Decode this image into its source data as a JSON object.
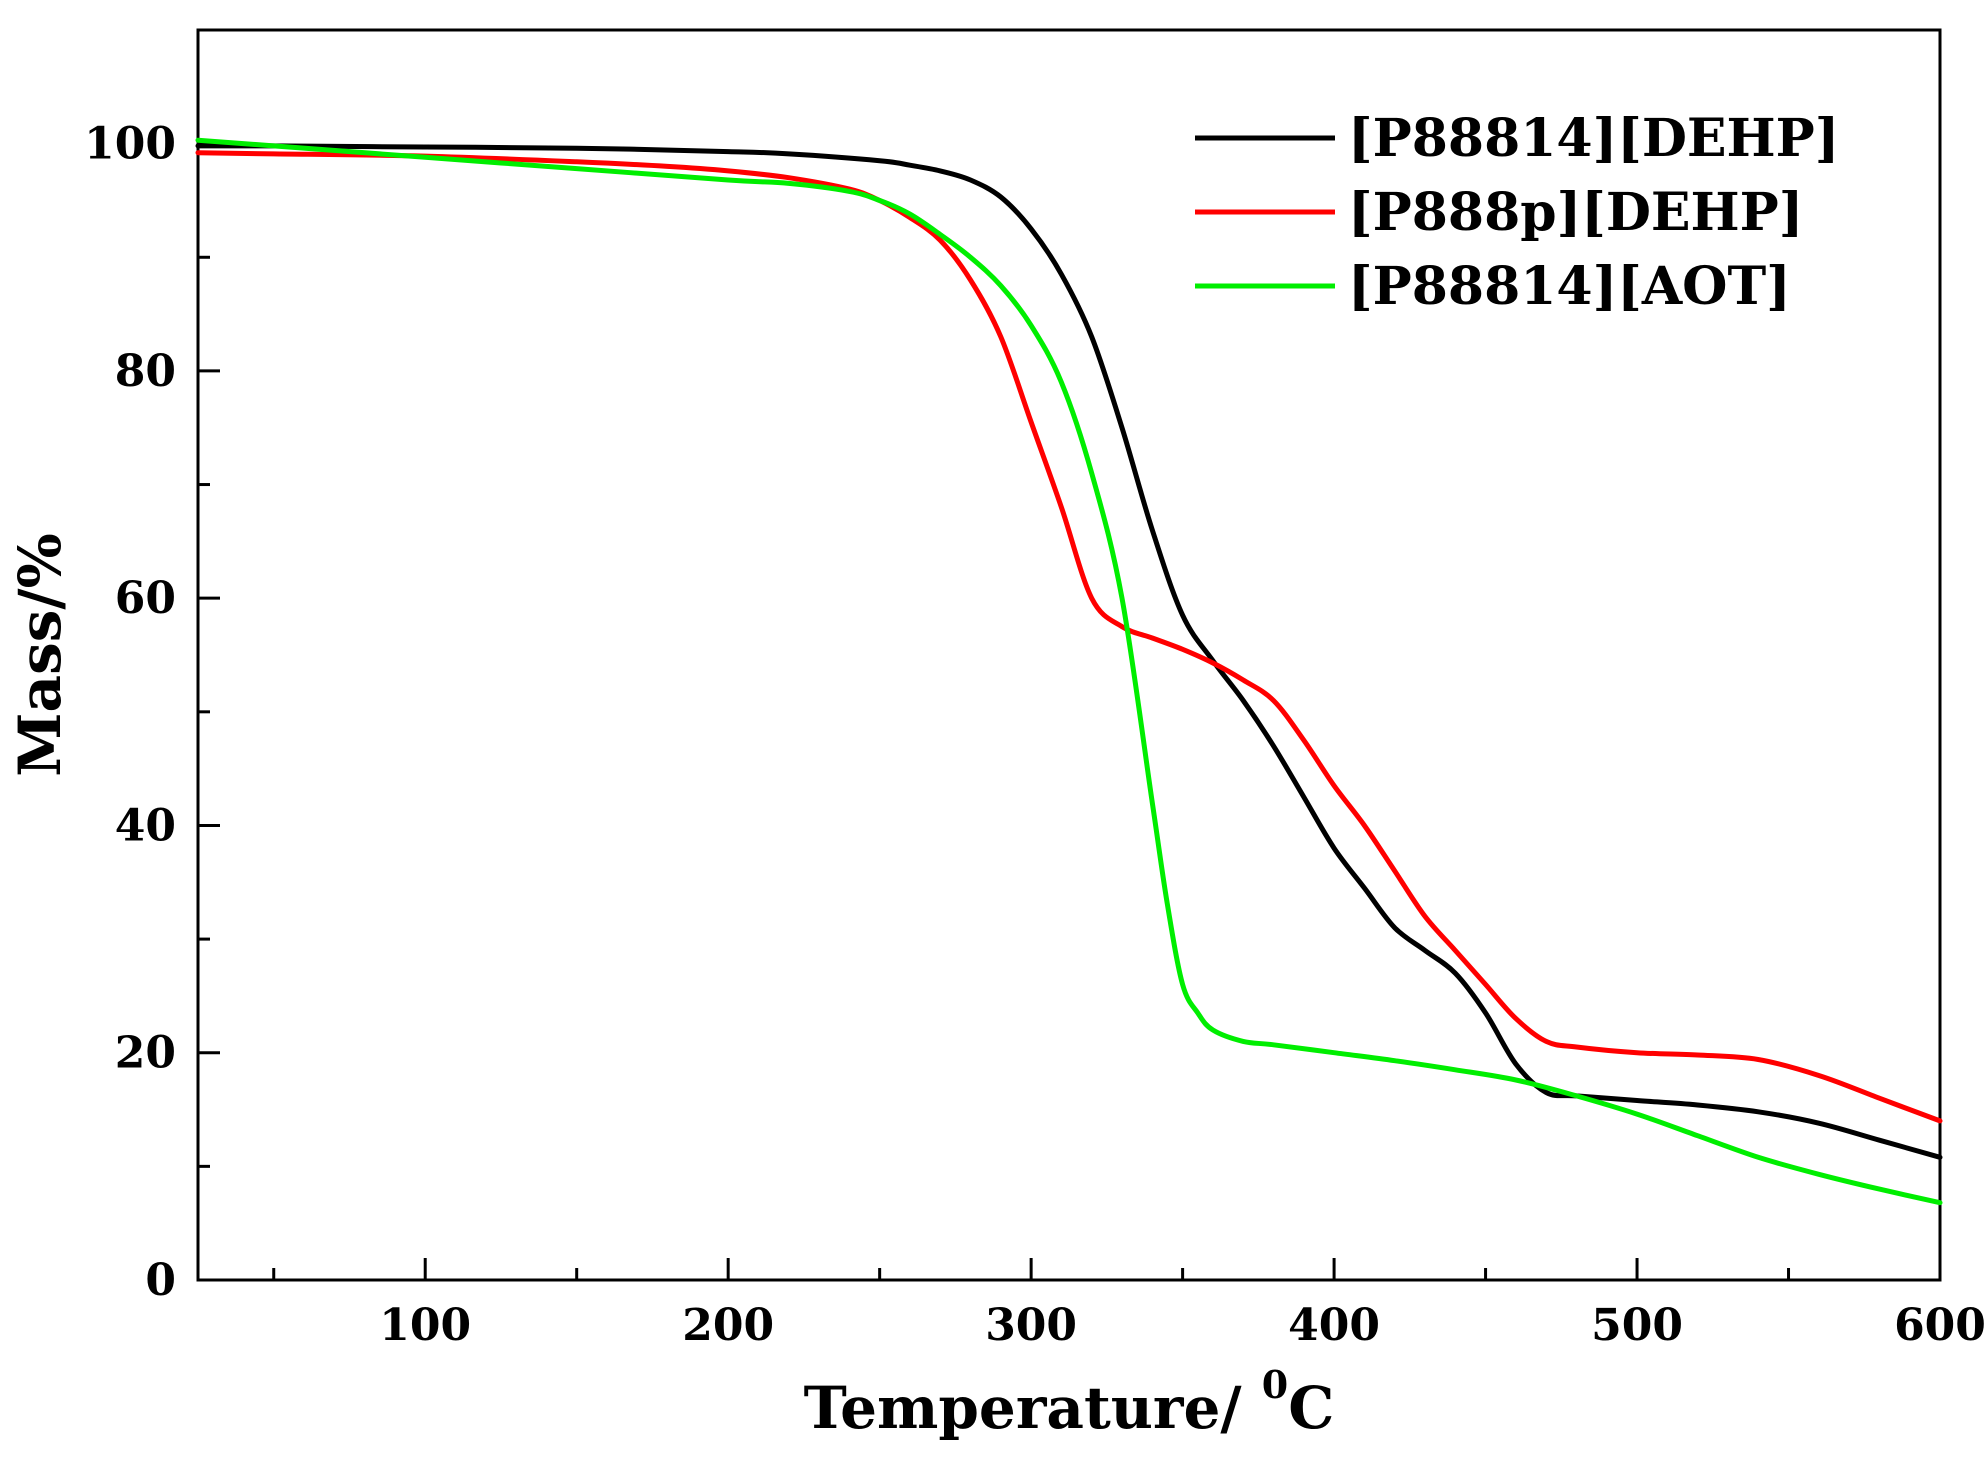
{
  "chart_data": {
    "type": "line",
    "title": "",
    "xlabel": "Temperature/ ",
    "xlabel_superscript": "0",
    "xlabel_unit": "C",
    "ylabel": "Mass/%",
    "xlim": [
      25,
      600
    ],
    "ylim": [
      0,
      110
    ],
    "x_ticks": [
      100,
      200,
      300,
      400,
      500,
      600
    ],
    "x_minor_ticks": [
      50,
      150,
      250,
      350,
      450,
      550
    ],
    "y_ticks": [
      0,
      20,
      40,
      60,
      80,
      100
    ],
    "y_minor_ticks": [
      10,
      30,
      50,
      70,
      90
    ],
    "legend_position": "top-right",
    "series": [
      {
        "name": "[P88814][DEHP]",
        "color": "#000000",
        "points": [
          [
            25,
            99.8
          ],
          [
            50,
            99.8
          ],
          [
            100,
            99.7
          ],
          [
            150,
            99.6
          ],
          [
            200,
            99.3
          ],
          [
            220,
            99.1
          ],
          [
            250,
            98.5
          ],
          [
            260,
            98.1
          ],
          [
            270,
            97.6
          ],
          [
            280,
            96.8
          ],
          [
            290,
            95.3
          ],
          [
            300,
            92.5
          ],
          [
            310,
            88.5
          ],
          [
            320,
            83
          ],
          [
            330,
            75
          ],
          [
            340,
            66
          ],
          [
            350,
            58.5
          ],
          [
            360,
            54.5
          ],
          [
            370,
            51
          ],
          [
            380,
            47
          ],
          [
            390,
            42.5
          ],
          [
            400,
            38
          ],
          [
            410,
            34.5
          ],
          [
            420,
            31
          ],
          [
            430,
            29
          ],
          [
            440,
            27
          ],
          [
            450,
            23.5
          ],
          [
            460,
            19
          ],
          [
            470,
            16.5
          ],
          [
            480,
            16.2
          ],
          [
            500,
            15.8
          ],
          [
            520,
            15.4
          ],
          [
            540,
            14.8
          ],
          [
            560,
            13.8
          ],
          [
            580,
            12.3
          ],
          [
            600,
            10.8
          ]
        ]
      },
      {
        "name": "[P888p][DEHP]",
        "color": "#ff0000",
        "points": [
          [
            25,
            99.2
          ],
          [
            50,
            99.1
          ],
          [
            100,
            98.9
          ],
          [
            150,
            98.4
          ],
          [
            180,
            98
          ],
          [
            200,
            97.6
          ],
          [
            220,
            97
          ],
          [
            240,
            96
          ],
          [
            250,
            95
          ],
          [
            260,
            93.5
          ],
          [
            270,
            91.5
          ],
          [
            280,
            88
          ],
          [
            290,
            83
          ],
          [
            300,
            75.5
          ],
          [
            310,
            68
          ],
          [
            320,
            60
          ],
          [
            330,
            57.5
          ],
          [
            340,
            56.5
          ],
          [
            350,
            55.5
          ],
          [
            360,
            54.3
          ],
          [
            370,
            52.8
          ],
          [
            380,
            51
          ],
          [
            390,
            47.5
          ],
          [
            400,
            43.5
          ],
          [
            410,
            40
          ],
          [
            420,
            36
          ],
          [
            430,
            32
          ],
          [
            440,
            29
          ],
          [
            450,
            26
          ],
          [
            460,
            23
          ],
          [
            470,
            21
          ],
          [
            480,
            20.5
          ],
          [
            500,
            20
          ],
          [
            520,
            19.8
          ],
          [
            540,
            19.4
          ],
          [
            560,
            18
          ],
          [
            580,
            16
          ],
          [
            600,
            14
          ]
        ]
      },
      {
        "name": "[P88814][AOT]",
        "color": "#00ee00",
        "points": [
          [
            25,
            100.3
          ],
          [
            50,
            99.8
          ],
          [
            100,
            98.8
          ],
          [
            150,
            97.8
          ],
          [
            200,
            96.8
          ],
          [
            220,
            96.5
          ],
          [
            240,
            95.8
          ],
          [
            250,
            95
          ],
          [
            260,
            93.8
          ],
          [
            270,
            92
          ],
          [
            280,
            90
          ],
          [
            290,
            87.5
          ],
          [
            300,
            84
          ],
          [
            310,
            79
          ],
          [
            320,
            71
          ],
          [
            330,
            60
          ],
          [
            340,
            42
          ],
          [
            345,
            33
          ],
          [
            350,
            26
          ],
          [
            355,
            23.5
          ],
          [
            360,
            22
          ],
          [
            370,
            21
          ],
          [
            380,
            20.7
          ],
          [
            400,
            20
          ],
          [
            420,
            19.3
          ],
          [
            440,
            18.5
          ],
          [
            460,
            17.6
          ],
          [
            480,
            16.2
          ],
          [
            500,
            14.6
          ],
          [
            520,
            12.7
          ],
          [
            540,
            10.8
          ],
          [
            560,
            9.3
          ],
          [
            580,
            8
          ],
          [
            600,
            6.8
          ]
        ]
      }
    ]
  }
}
